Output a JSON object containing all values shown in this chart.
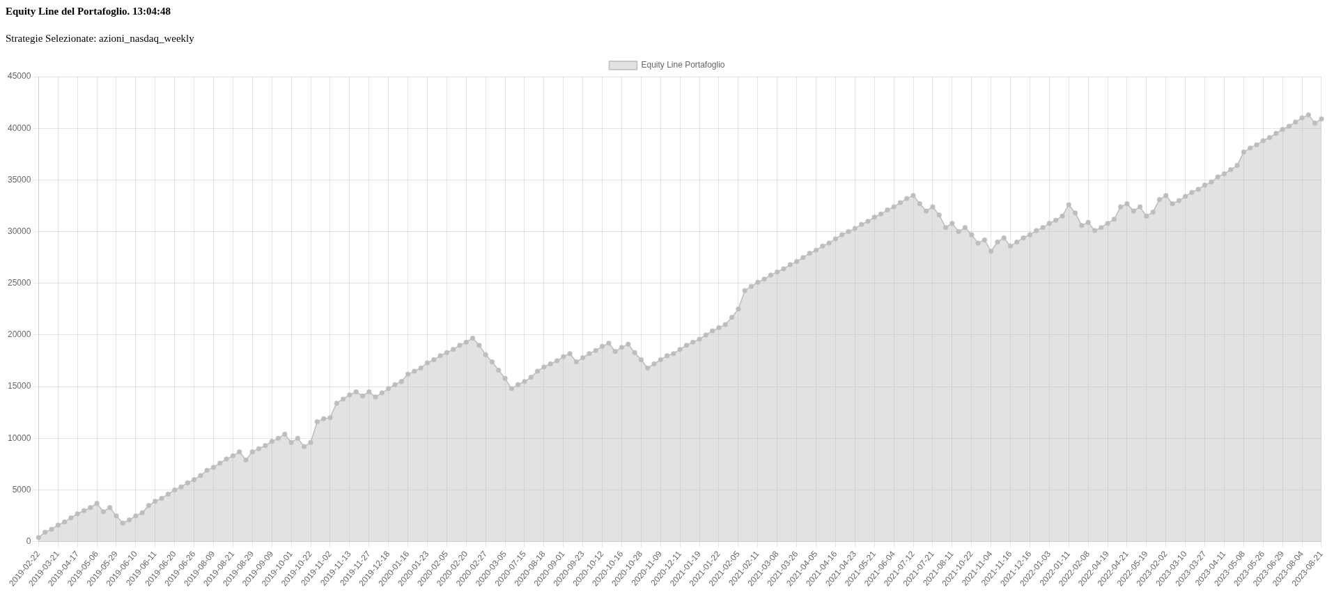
{
  "chart_data": {
    "type": "area",
    "title": "Equity Line del Portafoglio. 13:04:48",
    "subtitle": "Strategie Selezionate: azioni_nasdaq_weekly",
    "categories": [
      "2019-02-22",
      null,
      null,
      "2019-03-21",
      null,
      null,
      "2019-04-17",
      null,
      null,
      "2019-05-06",
      null,
      null,
      "2019-05-29",
      null,
      null,
      "2019-06-10",
      null,
      null,
      "2019-06-11",
      null,
      null,
      "2019-06-20",
      null,
      null,
      "2019-06-26",
      null,
      null,
      "2019-08-09",
      null,
      null,
      "2019-08-21",
      null,
      null,
      "2019-08-29",
      null,
      null,
      "2019-09-09",
      null,
      null,
      "2019-10-01",
      null,
      null,
      "2019-10-22",
      null,
      null,
      "2019-11-02",
      null,
      null,
      "2019-11-13",
      null,
      null,
      "2019-11-27",
      null,
      null,
      "2019-12-18",
      null,
      null,
      "2020-01-16",
      null,
      null,
      "2020-01-23",
      null,
      null,
      "2020-02-05",
      null,
      null,
      "2020-02-20",
      null,
      null,
      "2020-02-27",
      null,
      null,
      "2020-03-05",
      null,
      null,
      "2020-07-15",
      null,
      null,
      "2020-08-18",
      null,
      null,
      "2020-09-01",
      null,
      null,
      "2020-09-23",
      null,
      null,
      "2020-10-12",
      null,
      null,
      "2020-10-16",
      null,
      null,
      "2020-10-28",
      null,
      null,
      "2020-11-09",
      null,
      null,
      "2020-12-11",
      null,
      null,
      "2021-01-19",
      null,
      null,
      "2021-01-22",
      null,
      null,
      "2021-02-05",
      null,
      null,
      "2021-02-11",
      null,
      null,
      "2021-03-08",
      null,
      null,
      "2021-03-26",
      null,
      null,
      "2021-04-05",
      null,
      null,
      "2021-04-16",
      null,
      null,
      "2021-04-23",
      null,
      null,
      "2021-05-21",
      null,
      null,
      "2021-06-04",
      null,
      null,
      "2021-07-12",
      null,
      null,
      "2021-07-21",
      null,
      null,
      "2021-08-11",
      null,
      null,
      "2021-10-22",
      null,
      null,
      "2021-11-04",
      null,
      null,
      "2021-11-16",
      null,
      null,
      "2021-12-16",
      null,
      null,
      "2022-01-03",
      null,
      null,
      "2022-01-11",
      null,
      null,
      "2022-02-08",
      null,
      null,
      "2022-04-19",
      null,
      null,
      "2022-04-21",
      null,
      null,
      "2022-05-19",
      null,
      null,
      "2023-02-02",
      null,
      null,
      "2023-03-10",
      null,
      null,
      "2023-03-27",
      null,
      null,
      "2023-04-11",
      null,
      null,
      "2023-05-08",
      null,
      null,
      "2023-05-26",
      null,
      null,
      "2023-06-29",
      null,
      null,
      "2023-08-04",
      null,
      null,
      "2023-08-21"
    ],
    "series": [
      {
        "name": "Equity Line Portafoglio",
        "color": "#bdbdbd",
        "values": [
          400,
          900,
          1200,
          1600,
          1900,
          2300,
          2700,
          3000,
          3300,
          3700,
          2900,
          3300,
          2500,
          1800,
          2100,
          2500,
          2800,
          3500,
          3900,
          4200,
          4600,
          5000,
          5300,
          5700,
          6000,
          6400,
          6900,
          7200,
          7600,
          8000,
          8300,
          8700,
          7900,
          8700,
          9000,
          9300,
          9700,
          10000,
          10400,
          9600,
          10000,
          9200,
          9600,
          11600,
          11900,
          12000,
          13400,
          13800,
          14200,
          14500,
          14100,
          14500,
          14000,
          14400,
          14800,
          15200,
          15500,
          16200,
          16500,
          16800,
          17300,
          17600,
          18000,
          18300,
          18600,
          19000,
          19300,
          19700,
          19000,
          18100,
          17400,
          16600,
          15800,
          14800,
          15200,
          15500,
          15900,
          16500,
          16900,
          17200,
          17500,
          17900,
          18200,
          17400,
          17800,
          18200,
          18500,
          18900,
          19200,
          18400,
          18800,
          19100,
          18300,
          17600,
          16800,
          17200,
          17600,
          18000,
          18200,
          18600,
          19000,
          19300,
          19600,
          20000,
          20400,
          20700,
          21000,
          21700,
          22500,
          24300,
          24700,
          25100,
          25400,
          25800,
          26100,
          26400,
          26800,
          27100,
          27500,
          27900,
          28200,
          28600,
          28900,
          29300,
          29700,
          30000,
          30300,
          30700,
          31000,
          31400,
          31700,
          32100,
          32400,
          32800,
          33200,
          33500,
          32700,
          32000,
          32400,
          31600,
          30400,
          30800,
          30000,
          30400,
          29700,
          28900,
          29200,
          28100,
          29000,
          29400,
          28600,
          29000,
          29400,
          29700,
          30100,
          30400,
          30800,
          31100,
          31500,
          32600,
          31800,
          30600,
          30900,
          30100,
          30400,
          30800,
          31200,
          32400,
          32700,
          32000,
          32400,
          31500,
          31900,
          33100,
          33500,
          32700,
          33000,
          33400,
          33800,
          34100,
          34500,
          34800,
          35300,
          35600,
          36000,
          36400,
          37700,
          38100,
          38400,
          38800,
          39100,
          39500,
          39900,
          40200,
          40600,
          41000,
          41300,
          40500,
          40900
        ]
      }
    ],
    "ylim": [
      0,
      45000
    ],
    "yticks": [
      0,
      5000,
      10000,
      15000,
      20000,
      25000,
      30000,
      35000,
      40000,
      45000
    ],
    "grid": true,
    "legend": "top",
    "marker": "circle",
    "line_style": "solid"
  }
}
